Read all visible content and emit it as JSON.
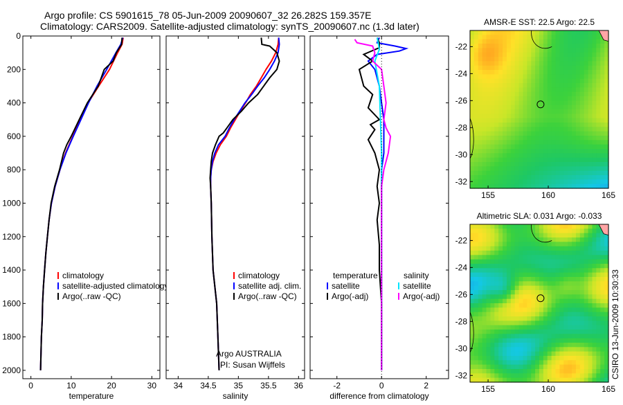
{
  "header": {
    "line1": "Argo profile: CS 5901615_78 05-Jun-2009 20090607_32 26.282S 159.357E",
    "line2": "Climatology: CARS2009. Satellite-adjusted climatology: synTS_20090607.nc (1.3d later)"
  },
  "footer_vertical": "CSIRO 13-Jun-2009 10:30:33",
  "credits": {
    "line1": "Argo AUSTRALIA",
    "line2": "PI: Susan Wijffels"
  },
  "colors": {
    "climatology": "#ff0000",
    "satellite": "#0000ff",
    "argo": "#000000",
    "sal_satellite": "#00e5ff",
    "sal_argo": "#ff00ff"
  },
  "chart_data": [
    {
      "type": "line",
      "panel": "temperature",
      "xlabel": "temperature",
      "xlim": [
        -2,
        32
      ],
      "ylim": [
        2050,
        0
      ],
      "xticks": [
        0,
        10,
        20,
        30
      ],
      "yticks": [
        0,
        200,
        400,
        600,
        800,
        1000,
        1200,
        1400,
        1600,
        1800,
        2000
      ],
      "legend": {
        "position": "lower-middle",
        "entries": [
          "climatology",
          "satellite-adjusted climatology",
          "Argo(..raw -QC)"
        ]
      },
      "series": [
        {
          "name": "climatology",
          "color": "#ff0000",
          "points": [
            [
              22.9,
              10
            ],
            [
              22.6,
              50
            ],
            [
              21.5,
              100
            ],
            [
              19.5,
              200
            ],
            [
              16.8,
              300
            ],
            [
              14.2,
              400
            ],
            [
              12.3,
              500
            ],
            [
              10.4,
              600
            ],
            [
              8.6,
              700
            ],
            [
              7.2,
              800
            ],
            [
              6.0,
              900
            ],
            [
              5.1,
              1000
            ],
            [
              4.5,
              1100
            ],
            [
              4.1,
              1200
            ],
            [
              3.7,
              1300
            ],
            [
              3.4,
              1400
            ],
            [
              3.1,
              1500
            ],
            [
              2.9,
              1600
            ],
            [
              2.8,
              1700
            ],
            [
              2.6,
              1800
            ],
            [
              2.5,
              1900
            ],
            [
              2.4,
              2000
            ]
          ]
        },
        {
          "name": "satellite-adjusted climatology",
          "color": "#0000ff",
          "points": [
            [
              22.8,
              10
            ],
            [
              22.3,
              50
            ],
            [
              21.1,
              100
            ],
            [
              18.8,
              200
            ],
            [
              16.4,
              300
            ],
            [
              14.3,
              400
            ],
            [
              12.4,
              500
            ],
            [
              10.5,
              600
            ],
            [
              8.7,
              700
            ],
            [
              7.2,
              800
            ],
            [
              6.0,
              900
            ],
            [
              5.1,
              1000
            ],
            [
              4.5,
              1100
            ],
            [
              4.1,
              1200
            ],
            [
              3.7,
              1300
            ],
            [
              3.4,
              1400
            ],
            [
              3.1,
              1500
            ],
            [
              2.9,
              1600
            ],
            [
              2.8,
              1700
            ],
            [
              2.6,
              1800
            ],
            [
              2.5,
              1900
            ],
            [
              2.4,
              2000
            ]
          ]
        },
        {
          "name": "Argo(..raw -QC)",
          "color": "#000000",
          "points": [
            [
              22.6,
              10
            ],
            [
              22.5,
              50
            ],
            [
              21.2,
              100
            ],
            [
              20.4,
              150
            ],
            [
              18.2,
              200
            ],
            [
              16.7,
              300
            ],
            [
              14.0,
              400
            ],
            [
              12.0,
              500
            ],
            [
              10.0,
              600
            ],
            [
              8.9,
              650
            ],
            [
              8.1,
              700
            ],
            [
              7.1,
              800
            ],
            [
              5.9,
              900
            ],
            [
              5.0,
              1000
            ],
            [
              4.5,
              1100
            ],
            [
              4.1,
              1200
            ],
            [
              3.7,
              1300
            ],
            [
              3.4,
              1400
            ],
            [
              3.1,
              1500
            ],
            [
              2.9,
              1600
            ],
            [
              2.8,
              1700
            ],
            [
              2.6,
              1800
            ],
            [
              2.5,
              1900
            ],
            [
              2.4,
              2000
            ]
          ]
        }
      ]
    },
    {
      "type": "line",
      "panel": "salinity",
      "xlabel": "salinity",
      "xlim": [
        33.8,
        36.1
      ],
      "ylim": [
        2050,
        0
      ],
      "xticks": [
        34,
        34.5,
        35,
        35.5,
        36
      ],
      "legend": {
        "position": "lower-middle",
        "entries": [
          "climatology",
          "satellite adj. clim.",
          "Argo(..raw -QC)"
        ]
      },
      "series": [
        {
          "name": "climatology",
          "color": "#ff0000",
          "points": [
            [
              35.67,
              10
            ],
            [
              35.66,
              50
            ],
            [
              35.62,
              100
            ],
            [
              35.55,
              150
            ],
            [
              35.46,
              200
            ],
            [
              35.38,
              250
            ],
            [
              35.3,
              300
            ],
            [
              35.2,
              350
            ],
            [
              35.12,
              400
            ],
            [
              35.03,
              450
            ],
            [
              34.95,
              500
            ],
            [
              34.87,
              550
            ],
            [
              34.8,
              600
            ],
            [
              34.7,
              650
            ],
            [
              34.63,
              700
            ],
            [
              34.58,
              750
            ],
            [
              34.55,
              800
            ],
            [
              34.54,
              850
            ],
            [
              34.54,
              900
            ],
            [
              34.55,
              1000
            ],
            [
              34.56,
              1200
            ],
            [
              34.58,
              1400
            ],
            [
              34.61,
              1500
            ],
            [
              34.64,
              1600
            ],
            [
              34.66,
              1800
            ],
            [
              34.68,
              2000
            ]
          ]
        },
        {
          "name": "satellite adj. clim.",
          "color": "#0000ff",
          "points": [
            [
              35.67,
              10
            ],
            [
              35.68,
              50
            ],
            [
              35.66,
              100
            ],
            [
              35.6,
              150
            ],
            [
              35.52,
              200
            ],
            [
              35.43,
              250
            ],
            [
              35.32,
              300
            ],
            [
              35.22,
              350
            ],
            [
              35.11,
              400
            ],
            [
              35.02,
              450
            ],
            [
              34.93,
              500
            ],
            [
              34.85,
              550
            ],
            [
              34.78,
              600
            ],
            [
              34.67,
              650
            ],
            [
              34.61,
              700
            ],
            [
              34.57,
              750
            ],
            [
              34.55,
              800
            ],
            [
              34.54,
              850
            ],
            [
              34.54,
              900
            ],
            [
              34.55,
              1000
            ],
            [
              34.56,
              1200
            ],
            [
              34.58,
              1400
            ],
            [
              34.61,
              1500
            ],
            [
              34.64,
              1600
            ],
            [
              34.66,
              1800
            ],
            [
              34.68,
              2000
            ]
          ]
        },
        {
          "name": "Argo(..raw -QC)",
          "color": "#000000",
          "points": [
            [
              35.38,
              10
            ],
            [
              35.39,
              50
            ],
            [
              35.52,
              60
            ],
            [
              35.64,
              100
            ],
            [
              35.68,
              150
            ],
            [
              35.64,
              200
            ],
            [
              35.52,
              250
            ],
            [
              35.42,
              300
            ],
            [
              35.32,
              350
            ],
            [
              35.17,
              400
            ],
            [
              35.05,
              450
            ],
            [
              34.91,
              500
            ],
            [
              34.81,
              550
            ],
            [
              34.75,
              580
            ],
            [
              34.68,
              600
            ],
            [
              34.62,
              650
            ],
            [
              34.57,
              700
            ],
            [
              34.55,
              750
            ],
            [
              34.54,
              800
            ],
            [
              34.53,
              850
            ],
            [
              34.54,
              900
            ],
            [
              34.55,
              1000
            ],
            [
              34.56,
              1200
            ],
            [
              34.58,
              1400
            ],
            [
              34.61,
              1500
            ],
            [
              34.64,
              1600
            ],
            [
              34.66,
              1800
            ],
            [
              34.68,
              2000
            ]
          ]
        }
      ]
    },
    {
      "type": "line",
      "panel": "difference",
      "xlabel": "difference from climatology",
      "xlim": [
        -3.2,
        3.0
      ],
      "ylim": [
        2050,
        0
      ],
      "xticks": [
        -2,
        0,
        2
      ],
      "legend": {
        "position": "lower-middle",
        "groups": [
          {
            "title": "temperature",
            "entries": [
              "satellite",
              "Argo(-adj)"
            ]
          },
          {
            "title": "salinity",
            "entries": [
              "satellite",
              "Argo(-adj)"
            ]
          }
        ]
      },
      "series": [
        {
          "name": "temperature satellite",
          "color": "#0000ff",
          "points": [
            [
              -0.1,
              10
            ],
            [
              -0.2,
              40
            ],
            [
              0.6,
              60
            ],
            [
              1.1,
              75
            ],
            [
              0.8,
              90
            ],
            [
              -0.2,
              110
            ],
            [
              -0.6,
              150
            ],
            [
              -0.3,
              200
            ],
            [
              -0.1,
              300
            ],
            [
              0.0,
              400
            ],
            [
              0.1,
              500
            ],
            [
              0.1,
              600
            ],
            [
              0.1,
              700
            ],
            [
              0.0,
              800
            ],
            [
              0.0,
              1000
            ],
            [
              0.0,
              1400
            ],
            [
              0.0,
              2000
            ]
          ]
        },
        {
          "name": "temperature Argo(-adj)",
          "color": "#000000",
          "points": [
            [
              -0.2,
              10
            ],
            [
              -0.1,
              40
            ],
            [
              -0.1,
              70
            ],
            [
              -0.8,
              110
            ],
            [
              -0.4,
              150
            ],
            [
              -1.0,
              200
            ],
            [
              -0.8,
              300
            ],
            [
              -0.4,
              350
            ],
            [
              -0.6,
              430
            ],
            [
              -0.1,
              500
            ],
            [
              -0.5,
              530
            ],
            [
              -0.3,
              560
            ],
            [
              -0.6,
              620
            ],
            [
              -0.3,
              700
            ],
            [
              -0.1,
              800
            ],
            [
              -0.2,
              900
            ],
            [
              -0.1,
              1000
            ],
            [
              -0.2,
              1100
            ],
            [
              -0.1,
              1250
            ],
            [
              -0.1,
              1400
            ],
            [
              0.0,
              1600
            ],
            [
              0.0,
              1800
            ],
            [
              0.0,
              2000
            ]
          ]
        },
        {
          "name": "salinity satellite",
          "color": "#00e5ff",
          "points": [
            [
              -0.2,
              10
            ],
            [
              -0.15,
              40
            ],
            [
              -0.1,
              80
            ],
            [
              -0.3,
              150
            ],
            [
              -0.1,
              300
            ],
            [
              -0.05,
              500
            ],
            [
              0.0,
              700
            ],
            [
              0.0,
              1000
            ],
            [
              0.0,
              1400
            ],
            [
              0.0,
              2000
            ]
          ]
        },
        {
          "name": "salinity Argo(-adj)",
          "color": "#ff00ff",
          "points": [
            [
              -1.2,
              20
            ],
            [
              -1.1,
              40
            ],
            [
              -0.4,
              60
            ],
            [
              -0.3,
              100
            ],
            [
              -0.4,
              150
            ],
            [
              0.0,
              200
            ],
            [
              0.1,
              300
            ],
            [
              0.2,
              400
            ],
            [
              0.1,
              500
            ],
            [
              0.2,
              550
            ],
            [
              0.4,
              600
            ],
            [
              0.3,
              700
            ],
            [
              0.1,
              800
            ],
            [
              0.0,
              900
            ],
            [
              0.0,
              1000
            ],
            [
              0.0,
              1200
            ],
            [
              0.0,
              1400
            ],
            [
              0.0,
              2000
            ]
          ]
        }
      ]
    },
    {
      "type": "heatmap",
      "panel": "sst-map",
      "title": "AMSR-E SST: 22.5 Argo: 22.5",
      "xlim": [
        153.5,
        165
      ],
      "ylim": [
        -32.5,
        -20.8
      ],
      "xticks": [
        155,
        160,
        165
      ],
      "yticks": [
        -22,
        -24,
        -26,
        -28,
        -30,
        -32
      ],
      "marker": {
        "lon": 159.36,
        "lat": -26.28
      }
    },
    {
      "type": "heatmap",
      "panel": "sla-map",
      "title": "Altimetric SLA: 0.031 Argo: -0.033",
      "xlim": [
        153.5,
        165
      ],
      "ylim": [
        -32.5,
        -20.8
      ],
      "xticks": [
        155,
        160,
        165
      ],
      "yticks": [
        -22,
        -24,
        -26,
        -28,
        -30,
        -32
      ],
      "marker": {
        "lon": 159.36,
        "lat": -26.28
      }
    }
  ]
}
